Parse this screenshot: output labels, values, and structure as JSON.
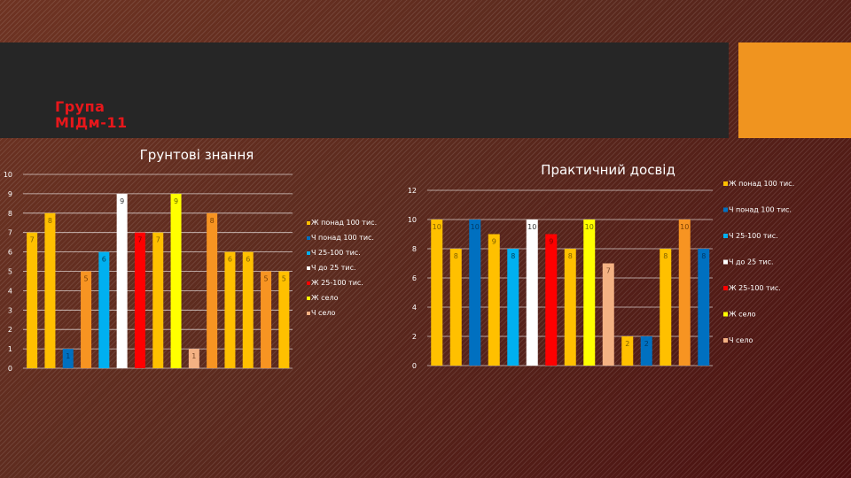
{
  "slide": {
    "group_title_line1": "Група",
    "group_title_line2": "МІДм-11",
    "accent_color": "#f0941f",
    "title_color": "#e8171b"
  },
  "chart_data": [
    {
      "type": "bar",
      "title": "Грунтові знання",
      "ylim": [
        0,
        10
      ],
      "yticks": [
        0,
        1,
        2,
        3,
        4,
        5,
        6,
        7,
        8,
        9,
        10
      ],
      "grid": true,
      "legend_position": "right",
      "legend": [
        {
          "name": "Ж понад 100 тис.",
          "color": "#ffc000"
        },
        {
          "name": "Ч понад 100 тис.",
          "color": "#0070c0"
        },
        {
          "name": "Ч 25-100 тис.",
          "color": "#00b0f0"
        },
        {
          "name": "Ч до 25 тис.",
          "color": "#ffffff"
        },
        {
          "name": "Ж 25-100 тис.",
          "color": "#ff0000"
        },
        {
          "name": "Ж село",
          "color": "#ffff00"
        },
        {
          "name": "Ч село",
          "color": "#f4b183"
        }
      ],
      "bars": [
        {
          "value": 7,
          "color": "#ffc000",
          "label": "7",
          "label_color": "#7f5f00"
        },
        {
          "value": 8,
          "color": "#ffc000",
          "label": "8",
          "label_color": "#7f5f00"
        },
        {
          "value": 1,
          "color": "#0070c0",
          "label": "1",
          "label_color": "#003a66"
        },
        {
          "value": 5,
          "color": "#f79422",
          "label": "5",
          "label_color": "#7a3f00"
        },
        {
          "value": 6,
          "color": "#00b0f0",
          "label": "6",
          "label_color": "#00445e"
        },
        {
          "value": 9,
          "color": "#ffffff",
          "label": "9",
          "label_color": "#333333"
        },
        {
          "value": 7,
          "color": "#ff0000",
          "label": "7",
          "label_color": "#7a0000"
        },
        {
          "value": 7,
          "color": "#ffc000",
          "label": "7",
          "label_color": "#7f5f00"
        },
        {
          "value": 9,
          "color": "#ffff00",
          "label": "9",
          "label_color": "#6b6b00"
        },
        {
          "value": 1,
          "color": "#f4b183",
          "label": "1",
          "label_color": "#7a4a2a"
        },
        {
          "value": 8,
          "color": "#f79422",
          "label": "8",
          "label_color": "#7a3f00"
        },
        {
          "value": 6,
          "color": "#ffc000",
          "label": "6",
          "label_color": "#7f5f00"
        },
        {
          "value": 6,
          "color": "#ffc000",
          "label": "6",
          "label_color": "#7f5f00"
        },
        {
          "value": 5,
          "color": "#f79422",
          "label": "5",
          "label_color": "#7a3f00"
        },
        {
          "value": 5,
          "color": "#ffc000",
          "label": "5",
          "label_color": "#7f5f00"
        }
      ]
    },
    {
      "type": "bar",
      "title": "Практичний досвід",
      "ylim": [
        0,
        12
      ],
      "yticks": [
        0,
        2,
        4,
        6,
        8,
        10,
        12
      ],
      "grid": true,
      "legend_position": "right",
      "legend": [
        {
          "name": "Ж понад 100 тис.",
          "color": "#ffc000"
        },
        {
          "name": "Ч понад 100 тис.",
          "color": "#0070c0"
        },
        {
          "name": "Ч 25-100 тис.",
          "color": "#00b0f0"
        },
        {
          "name": "Ч до 25 тис.",
          "color": "#ffffff"
        },
        {
          "name": "Ж 25-100 тис.",
          "color": "#ff0000"
        },
        {
          "name": "Ж село",
          "color": "#ffff00"
        },
        {
          "name": "Ч село",
          "color": "#f4b183"
        }
      ],
      "bars": [
        {
          "value": 10,
          "color": "#ffc000",
          "label": "10",
          "label_color": "#7f5f00"
        },
        {
          "value": 8,
          "color": "#ffc000",
          "label": "8",
          "label_color": "#7f5f00"
        },
        {
          "value": 10,
          "color": "#0070c0",
          "label": "10",
          "label_color": "#003a66"
        },
        {
          "value": 9,
          "color": "#ffc000",
          "label": "9",
          "label_color": "#7f5f00"
        },
        {
          "value": 8,
          "color": "#00b0f0",
          "label": "8",
          "label_color": "#00445e"
        },
        {
          "value": 10,
          "color": "#ffffff",
          "label": "10",
          "label_color": "#333333"
        },
        {
          "value": 9,
          "color": "#ff0000",
          "label": "9",
          "label_color": "#7a0000"
        },
        {
          "value": 8,
          "color": "#ffc000",
          "label": "8",
          "label_color": "#7f5f00"
        },
        {
          "value": 10,
          "color": "#ffff00",
          "label": "10",
          "label_color": "#6b6b00"
        },
        {
          "value": 7,
          "color": "#f4b183",
          "label": "7",
          "label_color": "#7a4a2a"
        },
        {
          "value": 2,
          "color": "#ffc000",
          "label": "2",
          "label_color": "#7f5f00"
        },
        {
          "value": 2,
          "color": "#0070c0",
          "label": "2",
          "label_color": "#003a66"
        },
        {
          "value": 8,
          "color": "#ffc000",
          "label": "8",
          "label_color": "#7f5f00"
        },
        {
          "value": 10,
          "color": "#f79422",
          "label": "10",
          "label_color": "#7a3f00"
        },
        {
          "value": 8,
          "color": "#0070c0",
          "label": "8",
          "label_color": "#003a66"
        }
      ]
    }
  ]
}
